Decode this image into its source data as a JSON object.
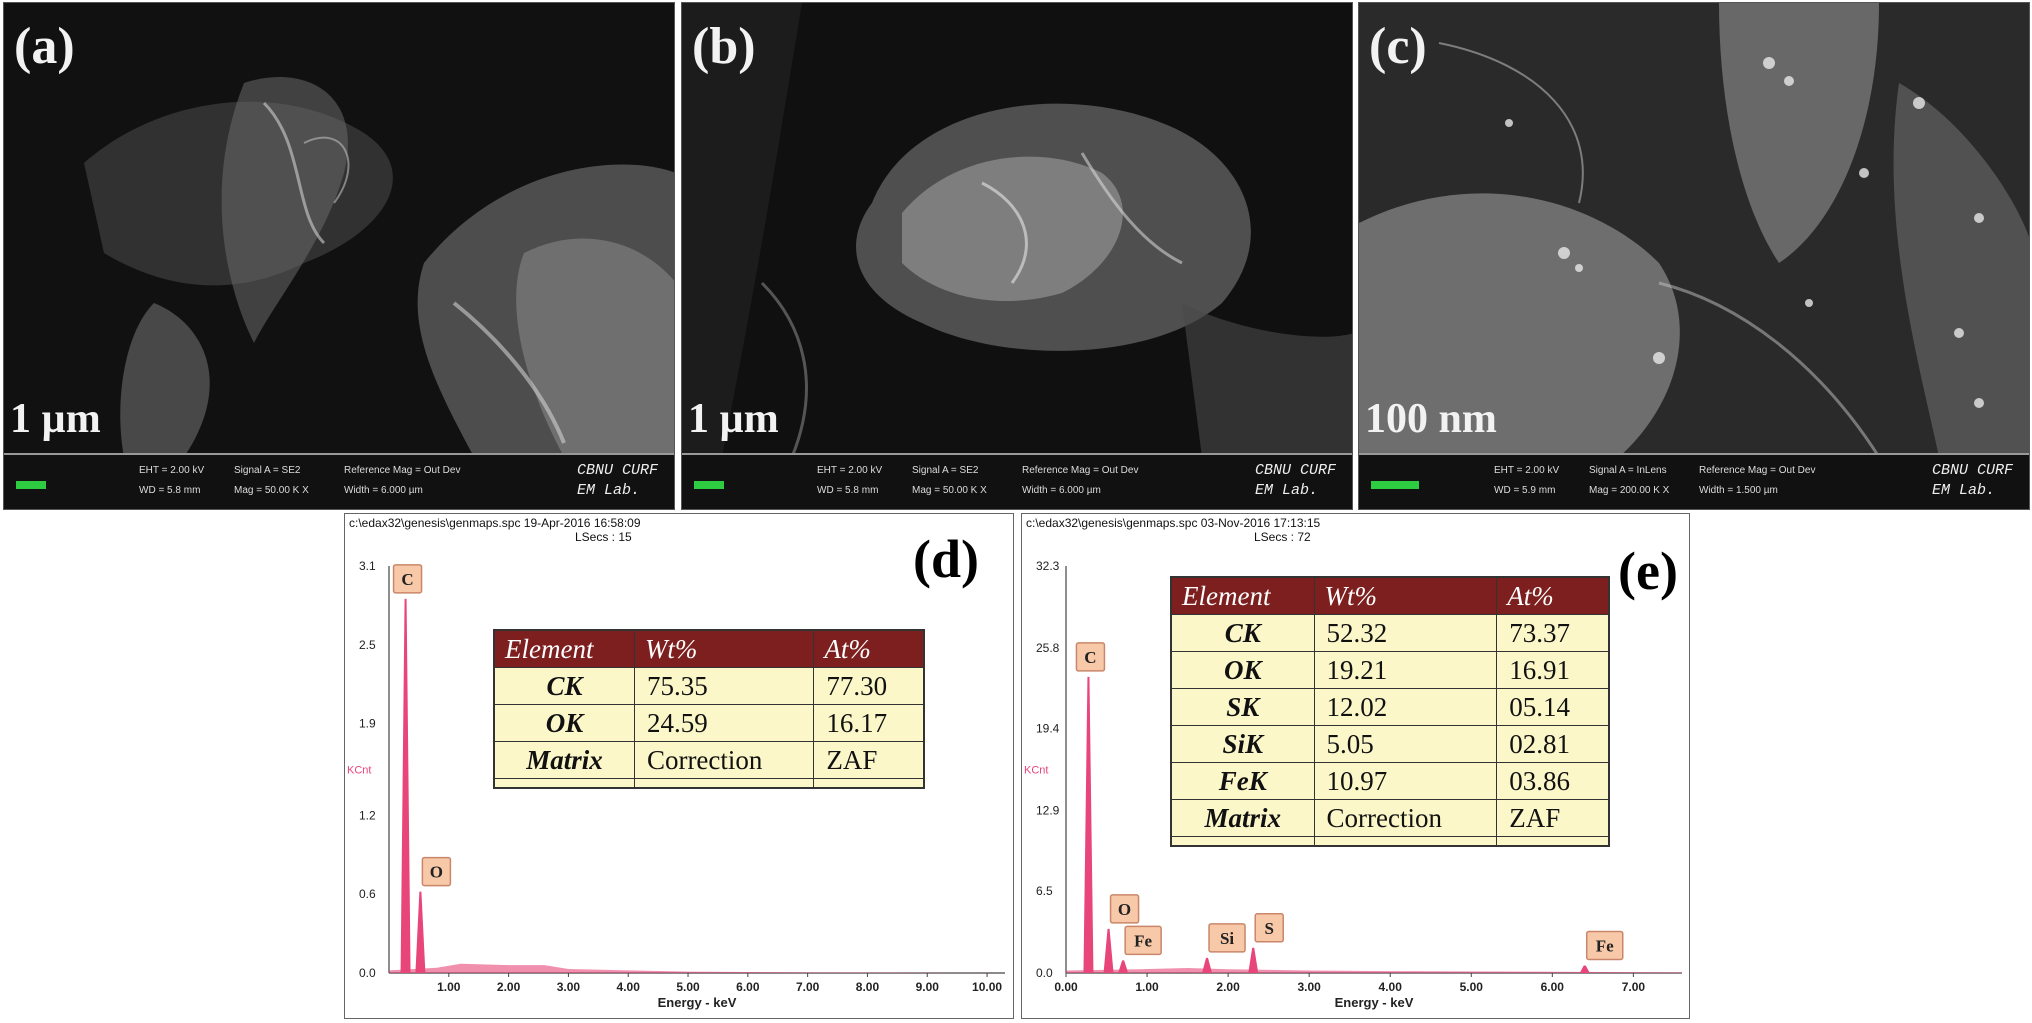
{
  "panels": [
    {
      "label": "(a)",
      "scale": "1 µm",
      "eht": "EHT = 2.00 kV",
      "wd": "WD = 5.8 mm",
      "signal": "Signal A = SE2",
      "mag": "Mag = 50.00 K X",
      "ref": "Reference Mag = Out Dev",
      "width": "Width = 6.000 µm",
      "brand1": "CBNU CURF",
      "brand2": "EM Lab."
    },
    {
      "label": "(b)",
      "scale": "1 µm",
      "eht": "EHT = 2.00 kV",
      "wd": "WD = 5.8 mm",
      "signal": "Signal A = SE2",
      "mag": "Mag = 50.00 K X",
      "ref": "Reference Mag = Out Dev",
      "width": "Width = 6.000 µm",
      "brand1": "CBNU CURF",
      "brand2": "EM Lab."
    },
    {
      "label": "(c)",
      "scale": "100 nm",
      "eht": "EHT = 2.00 kV",
      "wd": "WD = 5.9 mm",
      "signal": "Signal A = InLens",
      "mag": "Mag = 200.00 K X",
      "ref": "Reference Mag = Out Dev",
      "width": "Width = 1.500 µm",
      "brand1": "CBNU CURF",
      "brand2": "EM Lab."
    }
  ],
  "eds_d": {
    "label": "(d)",
    "header": "c:\\edax32\\genesis\\genmaps.spc  19-Apr-2016 16:58:09",
    "lsecs": "LSecs : 15",
    "table": {
      "headers": [
        "Element",
        "Wt%",
        "At%"
      ],
      "rows": [
        [
          "CK",
          "75.35",
          "77.30"
        ],
        [
          "OK",
          "24.59",
          "16.17"
        ],
        [
          "Matrix",
          "Correction",
          "ZAF"
        ]
      ]
    }
  },
  "eds_e": {
    "label": "(e)",
    "header": "c:\\edax32\\genesis\\genmaps.spc  03-Nov-2016 17:13:15",
    "lsecs": "LSecs : 72",
    "table": {
      "headers": [
        "Element",
        "Wt%",
        "At%"
      ],
      "rows": [
        [
          "CK",
          "52.32",
          "73.37"
        ],
        [
          "OK",
          "19.21",
          "16.91"
        ],
        [
          "SK",
          "12.02",
          "05.14"
        ],
        [
          "SiK",
          "5.05",
          "02.81"
        ],
        [
          "FeK",
          "10.97",
          "03.86"
        ],
        [
          "Matrix",
          "Correction",
          "ZAF"
        ]
      ]
    }
  },
  "chart_data": [
    {
      "type": "line",
      "xlabel": "Energy - keV",
      "ylabel": "KCnt",
      "xlim": [
        0,
        10.3
      ],
      "ylim": [
        0,
        3.1
      ],
      "x_ticks": [
        "1.00",
        "2.00",
        "3.00",
        "4.00",
        "5.00",
        "6.00",
        "7.00",
        "8.00",
        "9.00",
        "10.00"
      ],
      "y_ticks": [
        "0.0",
        "0.6",
        "1.2",
        "1.9",
        "2.5",
        "3.1"
      ],
      "peaks": [
        {
          "label": "C",
          "x": 0.277,
          "y": 2.85
        },
        {
          "label": "O",
          "x": 0.525,
          "y": 0.62
        }
      ],
      "background": [
        [
          0,
          0.02
        ],
        [
          0.8,
          0.04
        ],
        [
          1.2,
          0.07
        ],
        [
          2.0,
          0.06
        ],
        [
          2.6,
          0.06
        ],
        [
          3.0,
          0.03
        ],
        [
          4.0,
          0.02
        ],
        [
          5.0,
          0.01
        ],
        [
          7.0,
          0.005
        ],
        [
          10.3,
          0.0
        ]
      ]
    },
    {
      "type": "line",
      "xlabel": "Energy - keV",
      "ylabel": "KCnt",
      "xlim": [
        0,
        7.6
      ],
      "ylim": [
        0,
        32.3
      ],
      "x_ticks": [
        "0.00",
        "1.00",
        "2.00",
        "3.00",
        "4.00",
        "5.00",
        "6.00",
        "7.00"
      ],
      "y_ticks": [
        "0.0",
        "6.5",
        "12.9",
        "19.4",
        "25.8",
        "32.3"
      ],
      "peaks": [
        {
          "label": "C",
          "x": 0.277,
          "y": 23.5
        },
        {
          "label": "O",
          "x": 0.525,
          "y": 3.5
        },
        {
          "label": "Fe",
          "x": 0.705,
          "y": 1.0
        },
        {
          "label": "Si",
          "x": 1.74,
          "y": 1.2
        },
        {
          "label": "S",
          "x": 2.31,
          "y": 2.0
        },
        {
          "label": "Fe",
          "x": 6.4,
          "y": 0.6
        }
      ],
      "background": [
        [
          0,
          0.2
        ],
        [
          0.9,
          0.3
        ],
        [
          1.5,
          0.4
        ],
        [
          2.0,
          0.3
        ],
        [
          3.0,
          0.2
        ],
        [
          4.0,
          0.15
        ],
        [
          6.0,
          0.1
        ],
        [
          7.6,
          0.05
        ]
      ]
    }
  ],
  "colors": {
    "spectrum": "#e8457a",
    "peak_label_bg": "#f8c9a8",
    "table_header": "#7d1f1f",
    "table_body": "#fbf7c9"
  }
}
